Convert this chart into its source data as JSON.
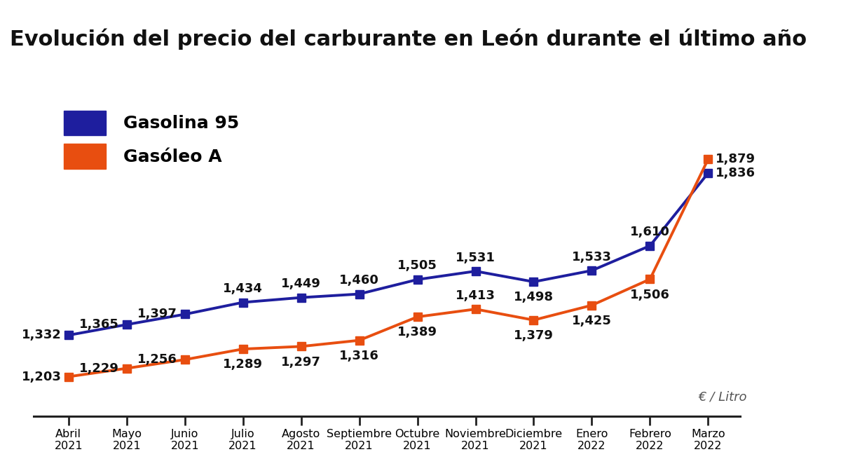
{
  "title": "Evolución del precio del carburante en León durante el último año",
  "title_bg": "#d0d0d0",
  "categories": [
    "Abril\n2021",
    "Mayo\n2021",
    "Junio\n2021",
    "Julio\n2021",
    "Agosto\n2021",
    "Septiembre\n2021",
    "Octubre\n2021",
    "Noviembre\n2021",
    "Diciembre\n2021",
    "Enero\n2022",
    "Febrero\n2022",
    "Marzo\n2022"
  ],
  "gasolina95": [
    1.332,
    1.365,
    1.397,
    1.434,
    1.449,
    1.46,
    1.505,
    1.531,
    1.498,
    1.533,
    1.61,
    1.836
  ],
  "gasoleo_a": [
    1.203,
    1.229,
    1.256,
    1.289,
    1.297,
    1.316,
    1.389,
    1.413,
    1.379,
    1.425,
    1.506,
    1.879
  ],
  "gasolina95_labels": [
    "1,332",
    "1,365",
    "1,397",
    "1,434",
    "1,449",
    "1,460",
    "1,505",
    "1,531",
    "1,498",
    "1,533",
    "1,610",
    "1,836"
  ],
  "gasoleo_a_labels": [
    "1,203",
    "1,229",
    "1,256",
    "1,289",
    "1,297",
    "1,316",
    "1,389",
    "1,413",
    "1,379",
    "1,425",
    "1,506",
    "1,879"
  ],
  "color_gasolina": "#1e1e9e",
  "color_gasoleo": "#e84e10",
  "legend_gasolina": "Gasolina 95",
  "legend_gasoleo": "Gasóleo A",
  "unit_label": "€ / Litro",
  "ylim_min": 1.08,
  "ylim_max": 2.08,
  "background_color": "#ffffff",
  "label_fontsize": 13,
  "legend_fontsize": 18,
  "title_fontsize": 22,
  "xtick_fontsize": 11.5
}
